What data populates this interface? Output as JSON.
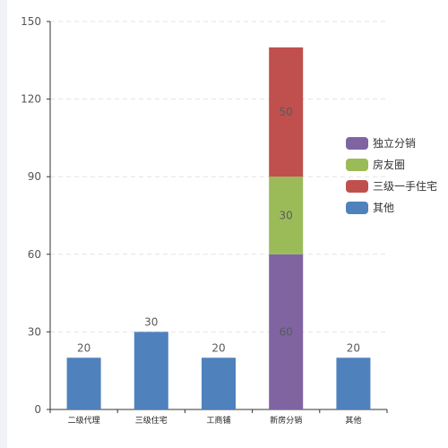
{
  "chart_data": {
    "type": "bar",
    "stacked": true,
    "categories": [
      "二级代理",
      "三级住宅",
      "工商铺",
      "新房分销",
      "其他"
    ],
    "ylim": [
      0,
      150
    ],
    "yticks": [
      0,
      30,
      60,
      90,
      120,
      150
    ],
    "grid": true,
    "legend_position": "right",
    "series": [
      {
        "name": "其他",
        "color": "#4f81bd",
        "values": [
          20,
          30,
          20,
          0,
          20
        ]
      },
      {
        "name": "三级一手住宅",
        "color": "#c0504d",
        "values": [
          0,
          0,
          0,
          0,
          0
        ]
      },
      {
        "name": "房友圈",
        "color": "#9bbb59",
        "values": [
          0,
          0,
          0,
          0,
          0
        ]
      },
      {
        "name": "独立分销",
        "color": "#8064a2",
        "values": [
          0,
          0,
          0,
          0,
          0
        ]
      }
    ],
    "stacks": {
      "新房分销": [
        {
          "series": "独立分销",
          "color": "#8064a2",
          "value": 60
        },
        {
          "series": "房友圈",
          "color": "#9bbb59",
          "value": 30
        },
        {
          "series": "三级一手住宅",
          "color": "#c0504d",
          "value": 50
        }
      ]
    },
    "legend": [
      {
        "name": "独立分销",
        "color": "#8064a2"
      },
      {
        "name": "房友圈",
        "color": "#9bbb59"
      },
      {
        "name": "三级一手住宅",
        "color": "#c0504d"
      },
      {
        "name": "其他",
        "color": "#4f81bd"
      }
    ]
  }
}
